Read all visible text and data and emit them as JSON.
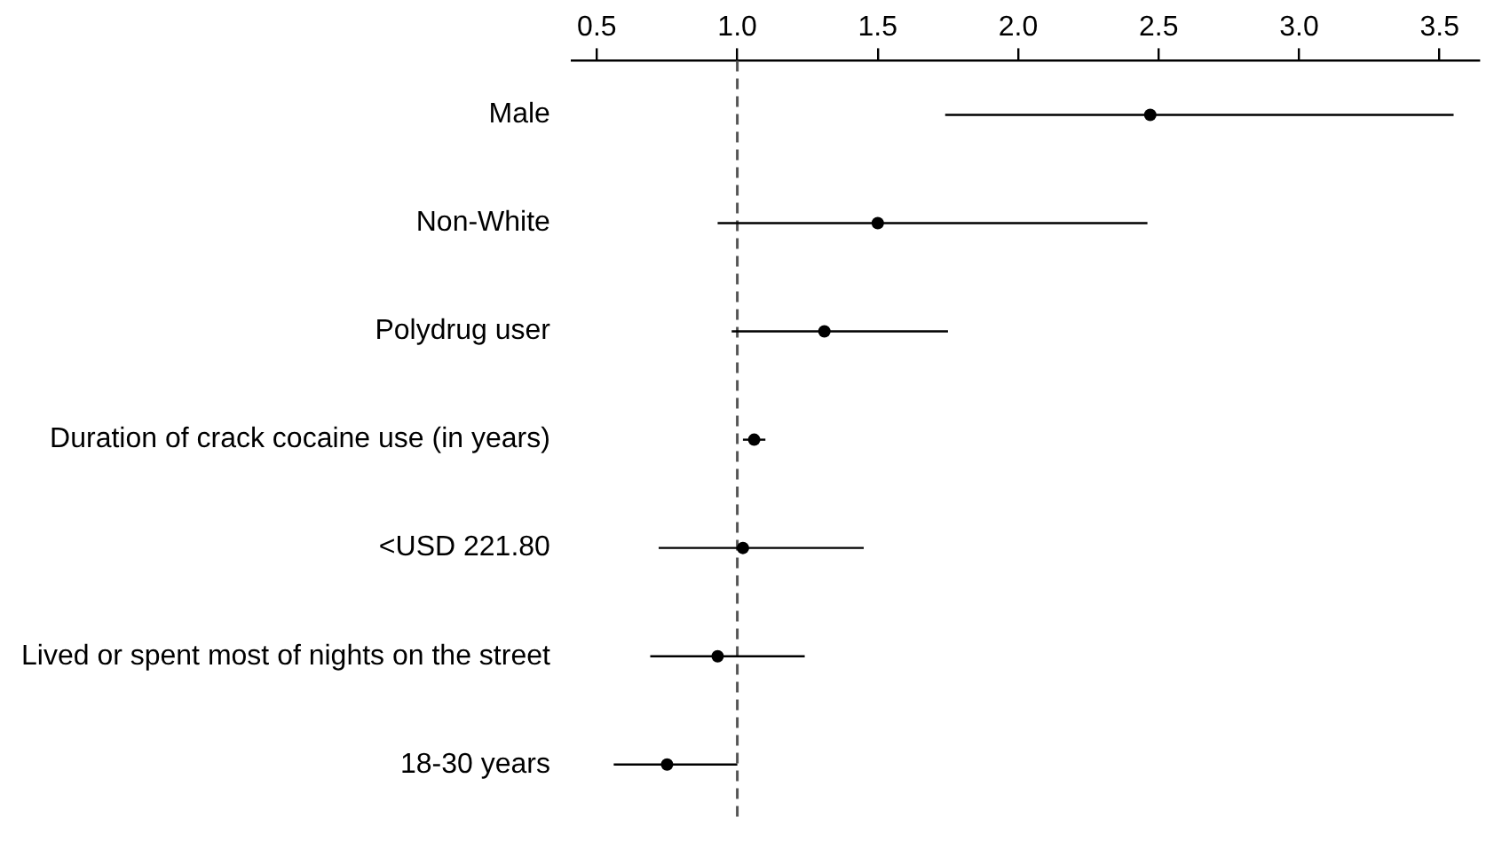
{
  "chart_data": {
    "type": "scatter",
    "orientation": "horizontal",
    "categories": [
      "Male",
      "Non-White",
      "Polydrug user",
      "Duration of crack cocaine use (in years)",
      "<USD 221.80",
      "Lived or spent most of nights on the street",
      "18-30 years"
    ],
    "values": [
      2.47,
      1.5,
      1.31,
      1.06,
      1.02,
      0.93,
      0.75
    ],
    "errors": [
      [
        1.74,
        3.55
      ],
      [
        0.93,
        2.46
      ],
      [
        0.98,
        1.75
      ],
      [
        1.02,
        1.1
      ],
      [
        0.72,
        1.45
      ],
      [
        0.69,
        1.24
      ],
      [
        0.56,
        1.0
      ]
    ],
    "color": "#000000",
    "xlim": [
      0.41,
      3.64
    ],
    "xticks": [
      0.5,
      {
        "value": 1,
        "label": "1.0"
      },
      1.5,
      {
        "value": 2,
        "label": "2.0"
      },
      2.5,
      {
        "value": 3,
        "label": "3.0"
      },
      3.5
    ],
    "ref_lines": [
      {
        "axis": "x",
        "value": 1,
        "color": "#555555",
        "line_style": "dashed"
      }
    ],
    "grid": false,
    "legend": false,
    "marker": "circle"
  }
}
